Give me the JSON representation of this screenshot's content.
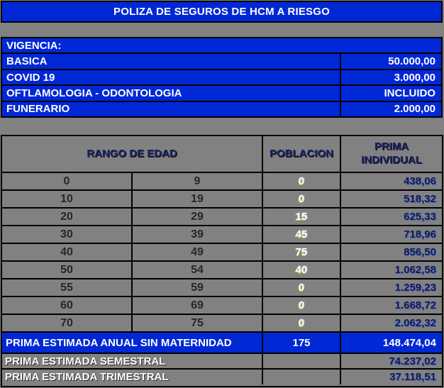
{
  "title": "POLIZA DE SEGUROS DE HCM A RIESGO",
  "coverage": {
    "header": "VIGENCIA:",
    "rows": [
      {
        "label": "BASICA",
        "value": "50.000,00"
      },
      {
        "label": "COVID 19",
        "value": "3.000,00"
      },
      {
        "label": "OFTLAMOLOGIA - ODONTOLOGIA",
        "value": "INCLUIDO"
      },
      {
        "label": "FUNERARIO",
        "value": "2.000,00"
      }
    ]
  },
  "age_table": {
    "headers": {
      "range": "RANGO DE EDAD",
      "population": "POBLACION",
      "premium_line1": "PRIMA",
      "premium_line2": "INDIVIDUAL"
    },
    "rows": [
      {
        "from": "0",
        "to": "9",
        "population": "0",
        "premium": "438,06"
      },
      {
        "from": "10",
        "to": "19",
        "population": "0",
        "premium": "518,32"
      },
      {
        "from": "20",
        "to": "29",
        "population": "15",
        "premium": "625,33"
      },
      {
        "from": "30",
        "to": "39",
        "population": "45",
        "premium": "718,96"
      },
      {
        "from": "40",
        "to": "49",
        "population": "75",
        "premium": "856,50"
      },
      {
        "from": "50",
        "to": "54",
        "population": "40",
        "premium": "1.062,58"
      },
      {
        "from": "55",
        "to": "59",
        "population": "0",
        "premium": "1.259,23"
      },
      {
        "from": "60",
        "to": "69",
        "population": "0",
        "premium": "1.668,72"
      },
      {
        "from": "70",
        "to": "75",
        "population": "0",
        "premium": "2.062,32"
      }
    ]
  },
  "totals": {
    "annual": {
      "label": "PRIMA ESTIMADA ANUAL SIN MATERNIDAD",
      "population": "175",
      "value": "148.474,04"
    },
    "semiannual": {
      "label": "PRIMA ESTIMADA SEMESTRAL",
      "value": "74.237,02"
    },
    "quarterly": {
      "label": "PRIMA ESTIMADA TRIMESTRAL",
      "value": "37.118,51"
    }
  },
  "colors": {
    "accent_blue": "#0128d5",
    "background_gray": "#818181",
    "border_black": "#000000",
    "header_text_navy": "#1b2368",
    "premium_text_navy": "#101c4e",
    "population_text": "#ffffff",
    "population_glow_yellow": "#d4c234"
  }
}
